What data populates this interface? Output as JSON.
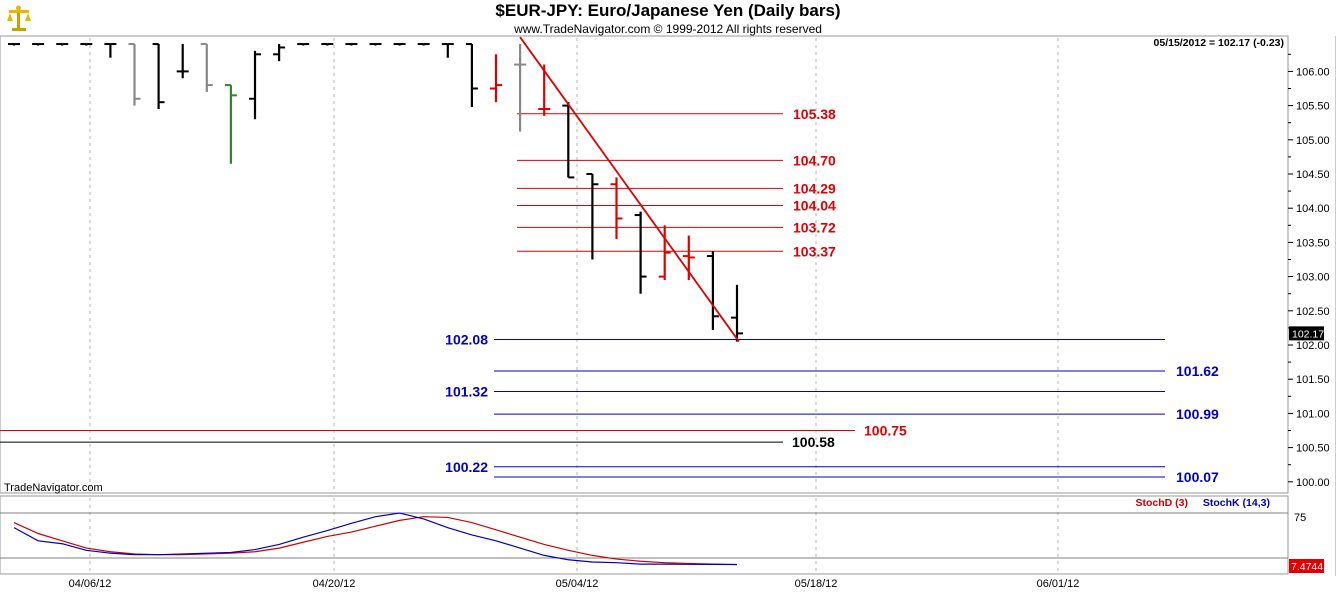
{
  "header": {
    "title": "$EUR-JPY:  Euro/Japanese Yen  (Daily bars)",
    "subtitle": "www.TradeNavigator.com © 1999-2012 All rights reserved",
    "price_readout": "05/15/2012 = 102.17 (-0.23)",
    "watermark": "TradeNavigator.com",
    "logo_icon": "trade-navigator-scales-icon"
  },
  "colors": {
    "bar_black": "#000000",
    "bar_gray": "#888888",
    "bar_red": "#e00000",
    "bar_green": "#2a8a2a",
    "level_red": "#e00000",
    "level_blue": "#0000c8",
    "trend": "#e00000",
    "stoch_d": "#d00000",
    "stoch_k": "#0000c0"
  },
  "chart_data": [
    {
      "type": "ohlc",
      "name": "price",
      "ylim": [
        99.5,
        106.4
      ],
      "y_ticks": [
        "100.00",
        "100.50",
        "101.00",
        "101.50",
        "102.00",
        "102.50",
        "103.00",
        "103.50",
        "104.00",
        "104.50",
        "105.00",
        "105.50",
        "106.00"
      ],
      "x_labels": [
        "04/06/12",
        "04/20/12",
        "05/04/12",
        "05/18/12",
        "06/01/12"
      ],
      "last_price_label": "102.17",
      "bars": [
        {
          "o": 106.4,
          "h": 106.4,
          "l": 106.4,
          "c": 106.4,
          "color": "black"
        },
        {
          "o": 106.4,
          "h": 106.4,
          "l": 106.4,
          "c": 106.4,
          "color": "black"
        },
        {
          "o": 106.4,
          "h": 106.4,
          "l": 106.4,
          "c": 106.4,
          "color": "black"
        },
        {
          "o": 106.4,
          "h": 106.4,
          "l": 106.4,
          "c": 106.4,
          "color": "black"
        },
        {
          "o": 106.4,
          "h": 106.4,
          "l": 106.2,
          "c": 106.4,
          "color": "black"
        },
        {
          "o": 106.4,
          "h": 106.4,
          "l": 105.5,
          "c": 105.6,
          "color": "gray"
        },
        {
          "o": 106.4,
          "h": 106.4,
          "l": 105.45,
          "c": 105.55,
          "color": "black"
        },
        {
          "o": 106.0,
          "h": 106.4,
          "l": 105.9,
          "c": 106.0,
          "color": "black"
        },
        {
          "o": 106.4,
          "h": 106.4,
          "l": 105.7,
          "c": 105.8,
          "color": "gray"
        },
        {
          "o": 105.8,
          "h": 105.8,
          "l": 104.65,
          "c": 105.65,
          "color": "green"
        },
        {
          "o": 105.6,
          "h": 106.3,
          "l": 105.3,
          "c": 106.25,
          "color": "black"
        },
        {
          "o": 106.25,
          "h": 106.4,
          "l": 106.15,
          "c": 106.35,
          "color": "black"
        },
        {
          "o": 106.4,
          "h": 106.4,
          "l": 106.4,
          "c": 106.4,
          "color": "black"
        },
        {
          "o": 106.4,
          "h": 106.4,
          "l": 106.4,
          "c": 106.4,
          "color": "black"
        },
        {
          "o": 106.4,
          "h": 106.4,
          "l": 106.4,
          "c": 106.4,
          "color": "black"
        },
        {
          "o": 106.4,
          "h": 106.4,
          "l": 106.4,
          "c": 106.4,
          "color": "black"
        },
        {
          "o": 106.4,
          "h": 106.4,
          "l": 106.4,
          "c": 106.4,
          "color": "black"
        },
        {
          "o": 106.4,
          "h": 106.4,
          "l": 106.4,
          "c": 106.4,
          "color": "black"
        },
        {
          "o": 106.4,
          "h": 106.4,
          "l": 106.2,
          "c": 106.4,
          "color": "black"
        },
        {
          "o": 106.4,
          "h": 106.4,
          "l": 105.48,
          "c": 105.75,
          "color": "black"
        },
        {
          "o": 105.75,
          "h": 106.25,
          "l": 105.55,
          "c": 105.8,
          "color": "red"
        },
        {
          "o": 106.1,
          "h": 106.4,
          "l": 105.12,
          "c": 106.1,
          "color": "gray"
        },
        {
          "o": 105.45,
          "h": 106.1,
          "l": 105.35,
          "c": 105.45,
          "color": "red"
        },
        {
          "o": 105.5,
          "h": 105.55,
          "l": 104.45,
          "c": 104.45,
          "color": "black"
        },
        {
          "o": 104.5,
          "h": 104.5,
          "l": 103.25,
          "c": 104.35,
          "color": "black"
        },
        {
          "o": 104.35,
          "h": 104.45,
          "l": 103.55,
          "c": 103.85,
          "color": "red"
        },
        {
          "o": 103.9,
          "h": 103.95,
          "l": 102.75,
          "c": 103.0,
          "color": "black"
        },
        {
          "o": 103.0,
          "h": 103.75,
          "l": 102.95,
          "c": 103.35,
          "color": "red"
        },
        {
          "o": 103.3,
          "h": 103.6,
          "l": 102.95,
          "c": 103.28,
          "color": "red"
        },
        {
          "o": 103.3,
          "h": 103.37,
          "l": 102.22,
          "c": 102.42,
          "color": "black"
        },
        {
          "o": 102.4,
          "h": 102.88,
          "l": 102.05,
          "c": 102.17,
          "color": "black"
        }
      ],
      "fib_levels_red": [
        {
          "value": 105.38,
          "label": "105.38"
        },
        {
          "value": 104.7,
          "label": "104.70"
        },
        {
          "value": 104.29,
          "label": "104.29"
        },
        {
          "value": 104.04,
          "label": "104.04"
        },
        {
          "value": 103.72,
          "label": "103.72"
        },
        {
          "value": 103.37,
          "label": "103.37"
        }
      ],
      "support_levels_blue": [
        {
          "value": 102.08,
          "label": "102.08",
          "label_side": "left"
        },
        {
          "value": 101.62,
          "label": "101.62",
          "label_side": "right"
        },
        {
          "value": 101.32,
          "label": "101.32",
          "label_side": "left"
        },
        {
          "value": 100.99,
          "label": "100.99",
          "label_side": "right"
        },
        {
          "value": 100.22,
          "label": "100.22",
          "label_side": "left"
        },
        {
          "value": 100.07,
          "label": "100.07",
          "label_side": "right"
        }
      ],
      "long_red_level": {
        "value": 100.75,
        "label": "100.75"
      },
      "long_black_level": {
        "value": 100.58,
        "label": "100.58"
      },
      "trendline": {
        "from": {
          "bar": 21,
          "value": 106.5
        },
        "to": {
          "bar": 30,
          "value": 102.05
        }
      }
    },
    {
      "type": "line",
      "name": "stochastic",
      "ylim": [
        0,
        100
      ],
      "y_ticks": [
        "75"
      ],
      "legend": [
        "StochD (3)",
        "StochK (14,3)"
      ],
      "last_value_label": "7.4744",
      "series": [
        {
          "name": "StochD (3)",
          "color": "red",
          "values": [
            65,
            50,
            40,
            30,
            25,
            22,
            21,
            21,
            22,
            23,
            25,
            30,
            38,
            46,
            52,
            60,
            68,
            73,
            72,
            65,
            55,
            45,
            35,
            27,
            20,
            15,
            12,
            10,
            9,
            8,
            7.5
          ]
        },
        {
          "name": "StochK (14,3)",
          "color": "blue",
          "values": [
            58,
            40,
            36,
            27,
            23,
            21,
            21,
            22,
            23,
            24,
            28,
            35,
            45,
            54,
            64,
            73,
            78,
            70,
            58,
            48,
            40,
            30,
            20,
            14,
            11,
            10,
            8,
            8,
            7.8,
            7.6,
            7.47
          ]
        }
      ]
    }
  ]
}
